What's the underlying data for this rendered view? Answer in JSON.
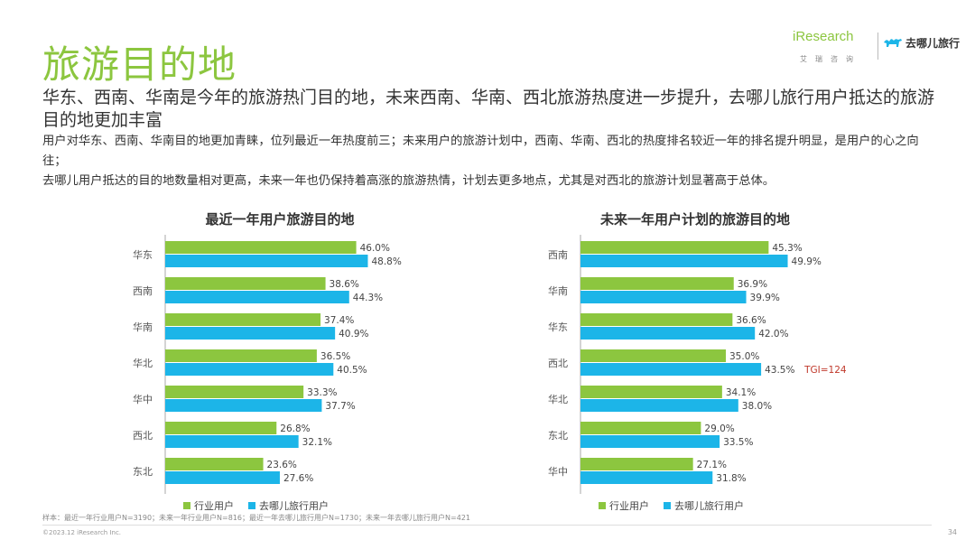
{
  "title": "旅游目的地",
  "logo": {
    "brand": "iResearch",
    "brand_sub": "艾瑞咨询",
    "partner": "去哪儿旅行"
  },
  "headline": "华东、西南、华南是今年的旅游热门目的地，未来西南、华南、西北旅游热度进一步提升，去哪儿旅行用户抵达的旅游目的地更加丰富",
  "body": [
    "用户对华东、西南、华南目的地更加青睐，位列最近一年热度前三；未来用户的旅游计划中，西南、华南、西北的热度排名较近一年的排名提升明显，是用户的心之向往；",
    "去哪儿用户抵达的目的地数量相对更高，未来一年也仍保持着高涨的旅游热情，计划去更多地点，尤其是对西北的旅游计划显著高于总体。"
  ],
  "colors": {
    "industry": "#8cc63f",
    "qunar": "#1cb5e8",
    "tgi": "#c0392b"
  },
  "chart_data": [
    {
      "type": "bar",
      "orientation": "horizontal",
      "title": "最近一年用户旅游目的地",
      "categories": [
        "华东",
        "西南",
        "华南",
        "华北",
        "华中",
        "西北",
        "东北"
      ],
      "series": [
        {
          "name": "行业用户",
          "values": [
            46.0,
            38.6,
            37.4,
            36.5,
            33.3,
            26.8,
            23.6
          ]
        },
        {
          "name": "去哪儿旅行用户",
          "values": [
            48.8,
            44.3,
            40.9,
            40.5,
            37.7,
            32.1,
            27.6
          ]
        }
      ],
      "value_suffix": "%",
      "legend": "bottom",
      "annotations": []
    },
    {
      "type": "bar",
      "orientation": "horizontal",
      "title": "未来一年用户计划的旅游目的地",
      "categories": [
        "西南",
        "华南",
        "华东",
        "西北",
        "华北",
        "东北",
        "华中"
      ],
      "series": [
        {
          "name": "行业用户",
          "values": [
            45.3,
            36.9,
            36.6,
            35.0,
            34.1,
            29.0,
            27.1
          ]
        },
        {
          "name": "去哪儿旅行用户",
          "values": [
            49.9,
            39.9,
            42.0,
            43.5,
            38.0,
            33.5,
            31.8
          ]
        }
      ],
      "value_suffix": "%",
      "legend": "bottom",
      "annotations": [
        {
          "category": "西北",
          "series": 1,
          "text": "TGI=124"
        }
      ]
    }
  ],
  "footnote": "样本：最近一年行业用户N=3190；未来一年行业用户N=816；最近一年去哪儿旅行用户N=1730；未来一年去哪儿旅行用户N=421",
  "copyright": "©2023.12 iResearch Inc.",
  "page_number": "34"
}
